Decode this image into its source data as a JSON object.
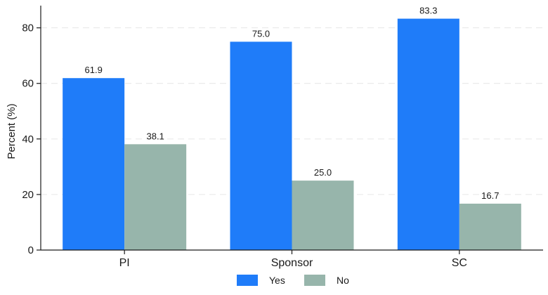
{
  "chart_data": {
    "type": "bar",
    "categories": [
      "PI",
      "Sponsor",
      "SC"
    ],
    "series": [
      {
        "name": "Yes",
        "values": [
          61.9,
          75.0,
          83.3
        ],
        "labels": [
          "61.9",
          "75.0",
          "83.3"
        ],
        "color": "#1f7cf9"
      },
      {
        "name": "No",
        "values": [
          38.1,
          25.0,
          16.7
        ],
        "labels": [
          "38.1",
          "25.0",
          "16.7"
        ],
        "color": "#97b5ab"
      }
    ],
    "ylabel": "Percent (%)",
    "ylim": [
      0,
      88
    ],
    "yticks": [
      0,
      20,
      40,
      60,
      80
    ],
    "grid": true,
    "legend": "bottom"
  }
}
